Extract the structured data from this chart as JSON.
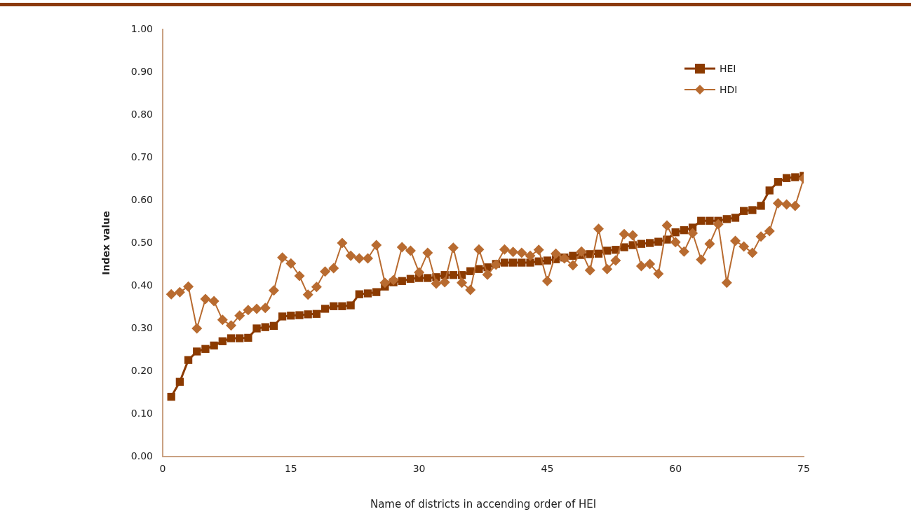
{
  "chart_data": {
    "type": "line",
    "xlabel": "Name of districts in accending order of HEI",
    "ylabel": "Index value",
    "x": [
      1,
      2,
      3,
      4,
      5,
      6,
      7,
      8,
      9,
      10,
      11,
      12,
      13,
      14,
      15,
      16,
      17,
      18,
      19,
      20,
      21,
      22,
      23,
      24,
      25,
      26,
      27,
      28,
      29,
      30,
      31,
      32,
      33,
      34,
      35,
      36,
      37,
      38,
      39,
      40,
      41,
      42,
      43,
      44,
      45,
      46,
      47,
      48,
      49,
      50,
      51,
      52,
      53,
      54,
      55,
      56,
      57,
      58,
      59,
      60,
      61,
      62,
      63,
      64,
      65,
      66,
      67,
      68,
      69,
      70,
      71,
      72,
      73,
      74,
      75
    ],
    "series": [
      {
        "name": "HEI",
        "color": "#8b3a00",
        "marker": "square",
        "values": [
          0.14,
          0.175,
          0.226,
          0.246,
          0.252,
          0.26,
          0.27,
          0.277,
          0.277,
          0.278,
          0.3,
          0.303,
          0.306,
          0.328,
          0.33,
          0.331,
          0.333,
          0.334,
          0.346,
          0.352,
          0.352,
          0.354,
          0.38,
          0.382,
          0.385,
          0.398,
          0.408,
          0.411,
          0.416,
          0.418,
          0.418,
          0.42,
          0.425,
          0.425,
          0.425,
          0.434,
          0.439,
          0.443,
          0.451,
          0.454,
          0.454,
          0.454,
          0.454,
          0.457,
          0.459,
          0.462,
          0.466,
          0.47,
          0.472,
          0.474,
          0.475,
          0.482,
          0.484,
          0.49,
          0.495,
          0.498,
          0.5,
          0.503,
          0.508,
          0.525,
          0.53,
          0.536,
          0.552,
          0.552,
          0.552,
          0.556,
          0.559,
          0.575,
          0.577,
          0.587,
          0.623,
          0.643,
          0.652,
          0.654,
          0.657
        ]
      },
      {
        "name": "HDI",
        "color": "#b86b30",
        "marker": "diamond",
        "values": [
          0.38,
          0.385,
          0.398,
          0.3,
          0.369,
          0.364,
          0.32,
          0.307,
          0.33,
          0.343,
          0.346,
          0.348,
          0.389,
          0.466,
          0.452,
          0.423,
          0.379,
          0.397,
          0.433,
          0.441,
          0.5,
          0.47,
          0.464,
          0.464,
          0.495,
          0.407,
          0.413,
          0.49,
          0.482,
          0.431,
          0.477,
          0.405,
          0.408,
          0.489,
          0.407,
          0.39,
          0.485,
          0.426,
          0.449,
          0.485,
          0.479,
          0.477,
          0.47,
          0.484,
          0.411,
          0.475,
          0.464,
          0.448,
          0.48,
          0.436,
          0.533,
          0.439,
          0.459,
          0.521,
          0.518,
          0.446,
          0.451,
          0.428,
          0.541,
          0.502,
          0.48,
          0.523,
          0.461,
          0.498,
          0.544,
          0.407,
          0.505,
          0.492,
          0.477,
          0.515,
          0.528,
          0.593,
          0.59,
          0.587,
          0.651
        ]
      }
    ],
    "xlim": [
      0,
      75
    ],
    "xticks": [
      0,
      15,
      30,
      45,
      60,
      75
    ],
    "ylim": [
      0,
      1
    ],
    "yticks": [
      {
        "value": 0,
        "label": "0.00"
      },
      {
        "value": 0.1,
        "label": "0.10"
      },
      {
        "value": 0.2,
        "label": "0.20"
      },
      {
        "value": 0.3,
        "label": "0.30"
      },
      {
        "value": 0.4,
        "label": "0.40"
      },
      {
        "value": 0.5,
        "label": "0.50"
      },
      {
        "value": 0.6,
        "label": "0.60"
      },
      {
        "value": 0.7,
        "label": "0.70"
      },
      {
        "value": 0.8,
        "label": "0.80"
      },
      {
        "value": 0.9,
        "label": "0.90"
      },
      {
        "value": 1,
        "label": "1.00"
      }
    ],
    "grid": false,
    "legend": "top right"
  }
}
